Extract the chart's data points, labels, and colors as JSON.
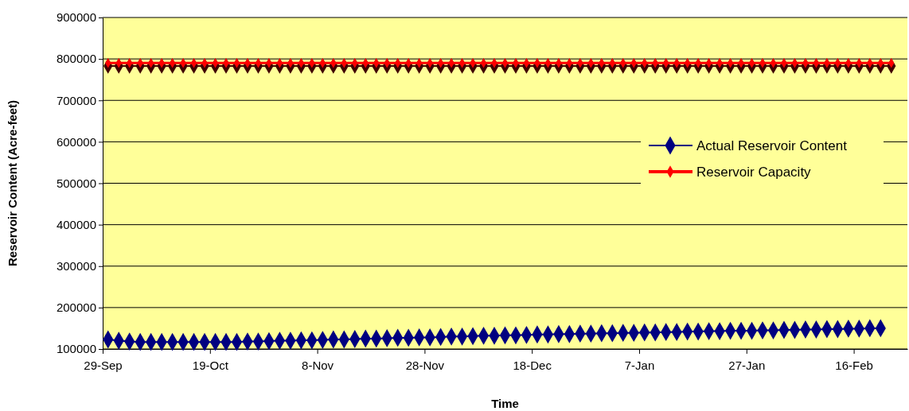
{
  "chart_data": {
    "type": "line",
    "xlabel": "Time",
    "ylabel": "Reservoir Content (Acre-feet)",
    "x": [
      "2000-09-30",
      "2000-10-02",
      "2000-10-04",
      "2000-10-06",
      "2000-10-08",
      "2000-10-10",
      "2000-10-12",
      "2000-10-14",
      "2000-10-16",
      "2000-10-18",
      "2000-10-20",
      "2000-10-22",
      "2000-10-24",
      "2000-10-26",
      "2000-10-28",
      "2000-10-30",
      "2000-11-01",
      "2000-11-03",
      "2000-11-05",
      "2000-11-07",
      "2000-11-09",
      "2000-11-11",
      "2000-11-13",
      "2000-11-15",
      "2000-11-17",
      "2000-11-19",
      "2000-11-21",
      "2000-11-23",
      "2000-11-25",
      "2000-11-27",
      "2000-11-29",
      "2000-12-01",
      "2000-12-03",
      "2000-12-05",
      "2000-12-07",
      "2000-12-09",
      "2000-12-11",
      "2000-12-13",
      "2000-12-15",
      "2000-12-17",
      "2000-12-19",
      "2000-12-21",
      "2000-12-23",
      "2000-12-25",
      "2000-12-27",
      "2000-12-29",
      "2000-12-31",
      "2001-01-02",
      "2001-01-04",
      "2001-01-06",
      "2001-01-08",
      "2001-01-10",
      "2001-01-12",
      "2001-01-14",
      "2001-01-16",
      "2001-01-18",
      "2001-01-20",
      "2001-01-22",
      "2001-01-24",
      "2001-01-26",
      "2001-01-28",
      "2001-01-30",
      "2001-02-01",
      "2001-02-03",
      "2001-02-05",
      "2001-02-07",
      "2001-02-09",
      "2001-02-11",
      "2001-02-13",
      "2001-02-15",
      "2001-02-17",
      "2001-02-19",
      "2001-02-21",
      "2001-02-23"
    ],
    "series": [
      {
        "color": "#400000",
        "values": [
          783000,
          783000,
          783000,
          783000,
          783000,
          783000,
          783000,
          783000,
          783000,
          783000,
          783000,
          783000,
          783000,
          783000,
          783000,
          783000,
          783000,
          783000,
          783000,
          783000,
          783000,
          783000,
          783000,
          783000,
          783000,
          783000,
          783000,
          783000,
          783000,
          783000,
          783000,
          783000,
          783000,
          783000,
          783000,
          783000,
          783000,
          783000,
          783000,
          783000,
          783000,
          783000,
          783000,
          783000,
          783000,
          783000,
          783000,
          783000,
          783000,
          783000,
          783000,
          783000,
          783000,
          783000,
          783000,
          783000,
          783000,
          783000,
          783000,
          783000,
          783000,
          783000,
          783000,
          783000,
          783000,
          783000,
          783000,
          783000,
          783000,
          783000,
          783000,
          783000,
          783000,
          783000
        ]
      },
      {
        "name": "Actual Reservoir Content",
        "color": "#000080",
        "values": [
          123000,
          120000,
          118000,
          117000,
          117000,
          117000,
          117000,
          117000,
          117000,
          117000,
          117000,
          117000,
          117000,
          118000,
          118000,
          119000,
          120000,
          120000,
          121000,
          121000,
          122000,
          123000,
          123000,
          124000,
          125000,
          125000,
          126000,
          127000,
          127000,
          128000,
          128000,
          129000,
          130000,
          130000,
          131000,
          132000,
          132000,
          133000,
          133000,
          134000,
          135000,
          135000,
          136000,
          136000,
          137000,
          137000,
          138000,
          138000,
          139000,
          139000,
          140000,
          140000,
          141000,
          141000,
          142000,
          142000,
          143000,
          143000,
          144000,
          144000,
          144000,
          145000,
          145000,
          146000,
          146000,
          147000,
          147000,
          148000,
          148000,
          149000,
          149000,
          150000,
          150000,
          null
        ]
      },
      {
        "name": "Reservoir Capacity",
        "color": "#ff0000",
        "values": [
          790000,
          790000,
          790000,
          790000,
          790000,
          790000,
          790000,
          790000,
          790000,
          790000,
          790000,
          790000,
          790000,
          790000,
          790000,
          790000,
          790000,
          790000,
          790000,
          790000,
          790000,
          790000,
          790000,
          790000,
          790000,
          790000,
          790000,
          790000,
          790000,
          790000,
          790000,
          790000,
          790000,
          790000,
          790000,
          790000,
          790000,
          790000,
          790000,
          790000,
          790000,
          790000,
          790000,
          790000,
          790000,
          790000,
          790000,
          790000,
          790000,
          790000,
          790000,
          790000,
          790000,
          790000,
          790000,
          790000,
          790000,
          790000,
          790000,
          790000,
          790000,
          790000,
          790000,
          790000,
          790000,
          790000,
          790000,
          790000,
          790000,
          790000,
          790000,
          790000,
          790000,
          790000
        ]
      }
    ],
    "xlim": [
      "2000-09-29",
      "2001-02-26"
    ],
    "xticks": [
      {
        "value": "2000-09-29",
        "label": "29-Sep"
      },
      {
        "value": "2000-10-19",
        "label": "19-Oct"
      },
      {
        "value": "2000-11-08",
        "label": "8-Nov"
      },
      {
        "value": "2000-11-28",
        "label": "28-Nov"
      },
      {
        "value": "2000-12-18",
        "label": "18-Dec"
      },
      {
        "value": "2001-01-07",
        "label": "7-Jan"
      },
      {
        "value": "2001-01-27",
        "label": "27-Jan"
      },
      {
        "value": "2001-02-16",
        "label": "16-Feb"
      }
    ],
    "ylim": [
      100000,
      900000
    ],
    "yticks": [
      100000,
      200000,
      300000,
      400000,
      500000,
      600000,
      700000,
      800000,
      900000
    ],
    "grid": "y",
    "legend": "right",
    "marker": "diamond",
    "line_style": "solid"
  }
}
